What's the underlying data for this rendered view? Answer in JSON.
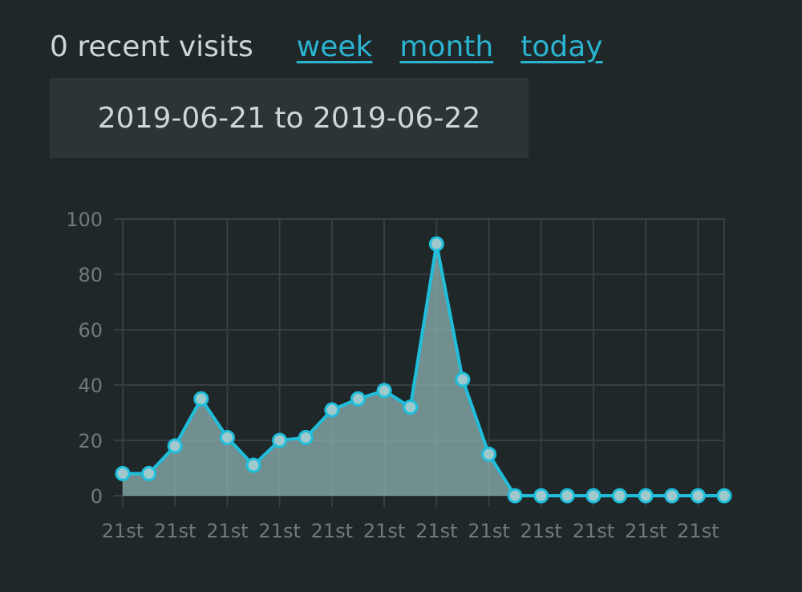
{
  "header": {
    "visits_label": "0 recent visits",
    "links": [
      "week",
      "month",
      "today"
    ]
  },
  "date_range": "2019-06-21 to 2019-06-22",
  "colors": {
    "accent": "#1fbfdc",
    "area_fill": "#8fb3b3",
    "grid": "#363f42",
    "text": "#cfd6d8",
    "tick_text": "#6f7a7d"
  },
  "chart_data": {
    "type": "area",
    "x": [
      "21st",
      "21st",
      "21st",
      "21st",
      "21st",
      "21st",
      "21st",
      "21st",
      "21st",
      "21st",
      "21st",
      "21st",
      "21st",
      "21st",
      "21st",
      "21st",
      "21st",
      "21st",
      "21st",
      "21st",
      "21st",
      "21st",
      "21st",
      "21st"
    ],
    "x_tick_labels": [
      "21st",
      "21st",
      "21st",
      "21st",
      "21st",
      "21st",
      "21st",
      "21st",
      "21st",
      "21st",
      "21st",
      "21st"
    ],
    "values": [
      8,
      8,
      18,
      35,
      21,
      11,
      20,
      21,
      31,
      35,
      38,
      32,
      91,
      42,
      15,
      0,
      0,
      0,
      0,
      0,
      0,
      0,
      0,
      0
    ],
    "y_ticks": [
      0,
      20,
      40,
      60,
      80,
      100
    ],
    "ylim": [
      0,
      100
    ],
    "grid": true,
    "title": "",
    "xlabel": "",
    "ylabel": ""
  }
}
